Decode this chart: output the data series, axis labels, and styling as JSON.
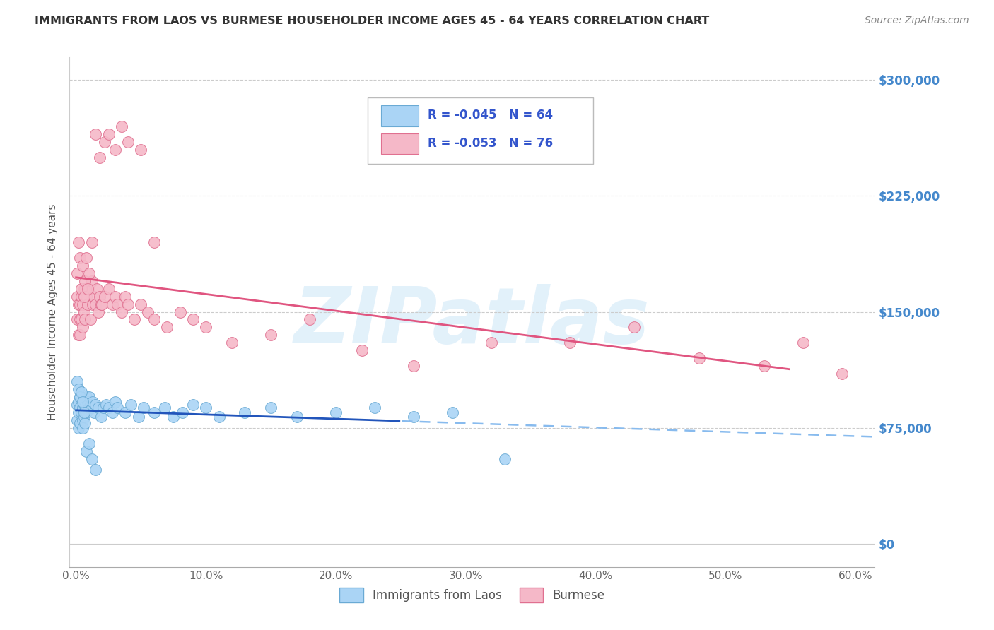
{
  "title": "IMMIGRANTS FROM LAOS VS BURMESE HOUSEHOLDER INCOME AGES 45 - 64 YEARS CORRELATION CHART",
  "source": "Source: ZipAtlas.com",
  "ylabel": "Householder Income Ages 45 - 64 years",
  "background_color": "#ffffff",
  "watermark": "ZIPatlas",
  "series": [
    {
      "name": "Immigrants from Laos",
      "R": -0.045,
      "N": 64,
      "color": "#aad4f5",
      "edge_color": "#6aaad4",
      "trend_color": "#2255bb",
      "dash_color": "#88bbee",
      "x": [
        0.001,
        0.001,
        0.002,
        0.002,
        0.002,
        0.003,
        0.003,
        0.003,
        0.004,
        0.004,
        0.005,
        0.005,
        0.005,
        0.006,
        0.006,
        0.007,
        0.007,
        0.008,
        0.008,
        0.009,
        0.01,
        0.01,
        0.011,
        0.012,
        0.013,
        0.014,
        0.015,
        0.017,
        0.019,
        0.021,
        0.023,
        0.025,
        0.028,
        0.03,
        0.032,
        0.038,
        0.042,
        0.048,
        0.052,
        0.06,
        0.068,
        0.075,
        0.082,
        0.09,
        0.1,
        0.11,
        0.13,
        0.15,
        0.17,
        0.2,
        0.23,
        0.26,
        0.29,
        0.33,
        0.001,
        0.002,
        0.003,
        0.004,
        0.005,
        0.006,
        0.008,
        0.01,
        0.012,
        0.015
      ],
      "y": [
        90000,
        80000,
        75000,
        85000,
        92000,
        88000,
        95000,
        78000,
        85000,
        95000,
        80000,
        75000,
        88000,
        82000,
        90000,
        78000,
        92000,
        95000,
        85000,
        92000,
        88000,
        95000,
        90000,
        88000,
        92000,
        85000,
        90000,
        88000,
        82000,
        88000,
        90000,
        88000,
        85000,
        92000,
        88000,
        85000,
        90000,
        82000,
        88000,
        85000,
        88000,
        82000,
        85000,
        90000,
        88000,
        82000,
        85000,
        88000,
        82000,
        85000,
        88000,
        82000,
        85000,
        55000,
        105000,
        100000,
        95000,
        98000,
        92000,
        85000,
        60000,
        65000,
        55000,
        48000
      ]
    },
    {
      "name": "Burmese",
      "R": -0.053,
      "N": 76,
      "color": "#f5b8c8",
      "edge_color": "#e07090",
      "trend_color": "#e05580",
      "x": [
        0.001,
        0.001,
        0.002,
        0.002,
        0.003,
        0.003,
        0.003,
        0.004,
        0.004,
        0.005,
        0.005,
        0.006,
        0.006,
        0.007,
        0.007,
        0.008,
        0.009,
        0.01,
        0.011,
        0.012,
        0.013,
        0.014,
        0.015,
        0.016,
        0.017,
        0.018,
        0.019,
        0.02,
        0.022,
        0.025,
        0.028,
        0.03,
        0.032,
        0.035,
        0.038,
        0.04,
        0.045,
        0.05,
        0.055,
        0.06,
        0.07,
        0.08,
        0.09,
        0.1,
        0.12,
        0.15,
        0.18,
        0.22,
        0.26,
        0.32,
        0.38,
        0.43,
        0.48,
        0.53,
        0.56,
        0.59,
        0.001,
        0.002,
        0.003,
        0.004,
        0.005,
        0.006,
        0.007,
        0.008,
        0.009,
        0.01,
        0.012,
        0.015,
        0.018,
        0.022,
        0.025,
        0.03,
        0.035,
        0.04,
        0.05,
        0.06
      ],
      "y": [
        160000,
        145000,
        155000,
        135000,
        155000,
        145000,
        135000,
        160000,
        145000,
        155000,
        140000,
        165000,
        150000,
        145000,
        165000,
        160000,
        155000,
        165000,
        145000,
        170000,
        155000,
        160000,
        155000,
        165000,
        150000,
        160000,
        155000,
        155000,
        160000,
        165000,
        155000,
        160000,
        155000,
        150000,
        160000,
        155000,
        145000,
        155000,
        150000,
        145000,
        140000,
        150000,
        145000,
        140000,
        130000,
        135000,
        145000,
        125000,
        115000,
        130000,
        130000,
        140000,
        120000,
        115000,
        130000,
        110000,
        175000,
        195000,
        185000,
        165000,
        180000,
        160000,
        170000,
        185000,
        165000,
        175000,
        195000,
        265000,
        250000,
        260000,
        265000,
        255000,
        270000,
        260000,
        255000,
        195000
      ]
    }
  ],
  "ytick_labels": [
    "$0",
    "$75,000",
    "$150,000",
    "$225,000",
    "$300,000"
  ],
  "ytick_values": [
    0,
    75000,
    150000,
    225000,
    300000
  ],
  "xtick_labels": [
    "0.0%",
    "10.0%",
    "20.0%",
    "30.0%",
    "40.0%",
    "50.0%",
    "60.0%"
  ],
  "xtick_values": [
    0,
    0.1,
    0.2,
    0.3,
    0.4,
    0.5,
    0.6
  ],
  "xlim": [
    -0.005,
    0.615
  ],
  "ylim": [
    -15000,
    315000
  ],
  "grid_color": "#cccccc",
  "right_label_color": "#4488cc",
  "title_color": "#333333",
  "source_color": "#888888",
  "laos_trend_x_end": 0.25,
  "burmese_trend_x_end": 0.55
}
